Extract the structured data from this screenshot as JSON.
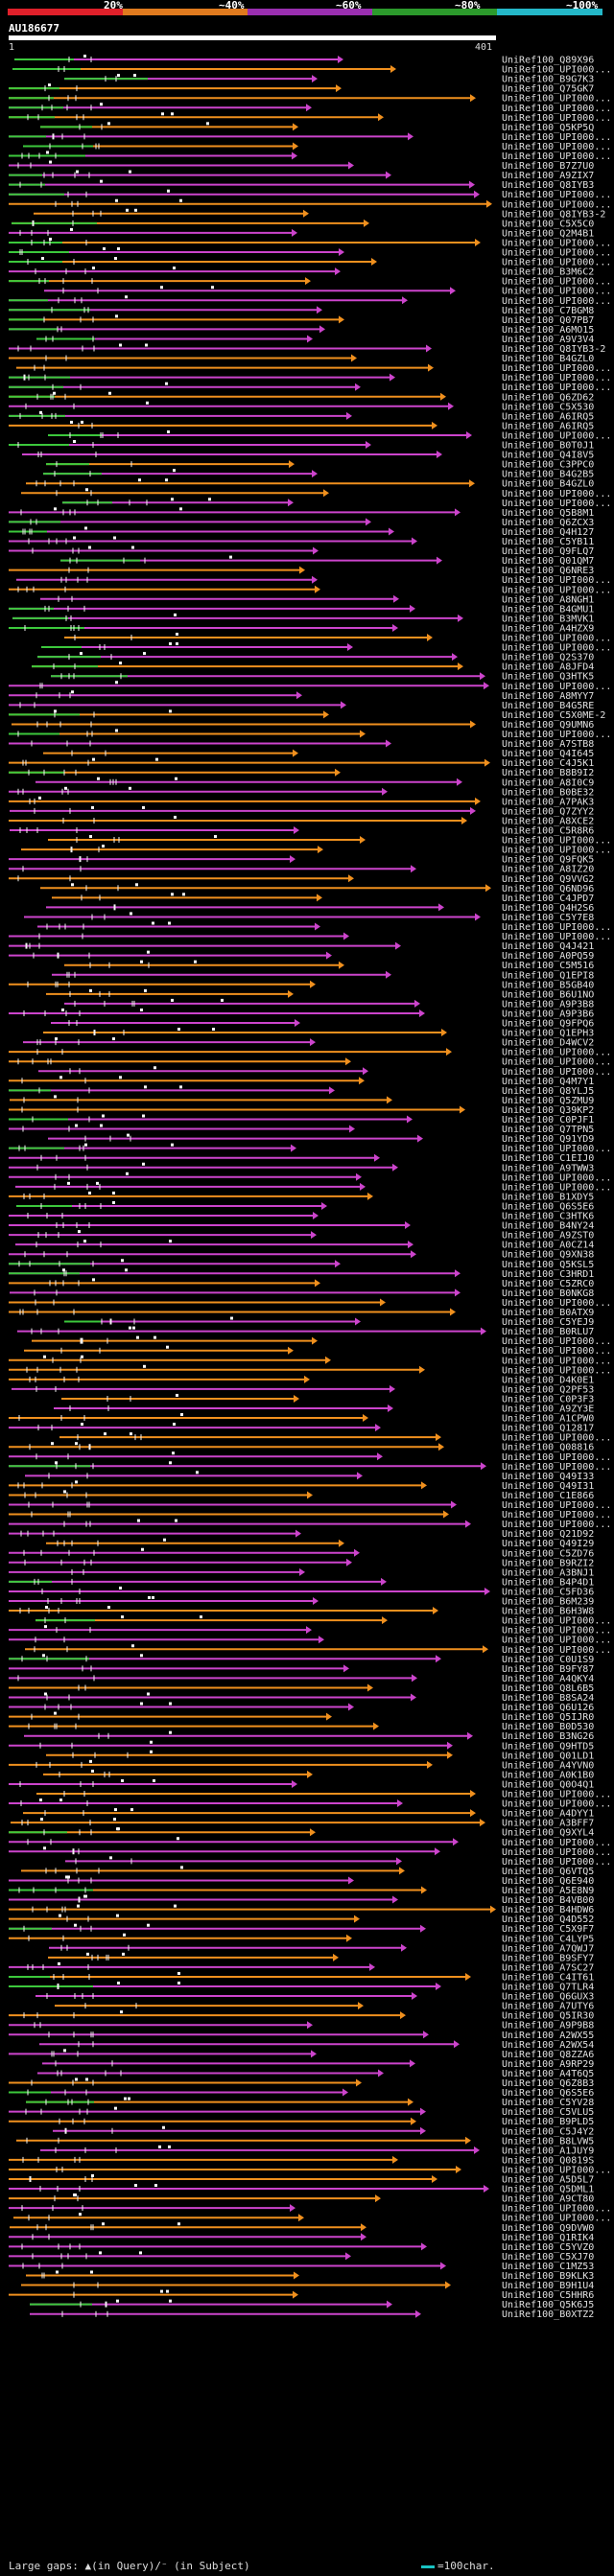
{
  "legend": {
    "segments": [
      {
        "label": "",
        "color": "#e0202a"
      },
      {
        "label": "20%",
        "color": "#e07a1e"
      },
      {
        "label": "~40%",
        "color": "#9a2fb0"
      },
      {
        "label": "~60%",
        "color": "#2c9a2c"
      },
      {
        "label": "~80%",
        "color": "#24b8c8"
      },
      {
        "label": "~100%",
        "color": "#24b8c8"
      }
    ],
    "labels": [
      "20%",
      "~40%",
      "~60%",
      "~80%",
      "~100%"
    ]
  },
  "query": {
    "title": "AU186677",
    "start": "1",
    "end": "401"
  },
  "colors": {
    "magenta": "#cc44cc",
    "orange": "#f0901e",
    "green": "#3cc83c",
    "white": "#ffffff"
  },
  "hits": [
    "UniRef100_Q89X96",
    "UniRef100_UPI000...",
    "UniRef100_B9G7K3",
    "UniRef100_Q75GK7",
    "UniRef100_UPI000...",
    "UniRef100_UPI000...",
    "UniRef100_UPI000...",
    "UniRef100_Q5KP5Q",
    "UniRef100_UPI000...",
    "UniRef100_UPI000...",
    "UniRef100_UPI000...",
    "UniRef100_B7Z7U0",
    "UniRef100_A9ZIX7",
    "UniRef100_Q8IYB3",
    "UniRef100_UPI000...",
    "UniRef100_UPI000...",
    "UniRef100_Q8IYB3-2",
    "UniRef100_C5X5C0",
    "UniRef100_Q2M4B1",
    "UniRef100_UPI000...",
    "UniRef100_UPI000...",
    "UniRef100_UPI000...",
    "UniRef100_B3M6C2",
    "UniRef100_UPI000...",
    "UniRef100_UPI000...",
    "UniRef100_UPI000...",
    "UniRef100_C7BGM8",
    "UniRef100_Q07PB7",
    "UniRef100_A6MO15",
    "UniRef100_A9V3V4",
    "UniRef100_Q8IYB3-2",
    "UniRef100_B4GZL0",
    "UniRef100_UPI000...",
    "UniRef100_UPI000...",
    "UniRef100_UPI000...",
    "UniRef100_Q6ZD62",
    "UniRef100_C5X530",
    "UniRef100_A6IRQ5",
    "UniRef100_A6IRQ5",
    "UniRef100_UPI000...",
    "UniRef100_B0T0J1",
    "UniRef100_Q4I8V5",
    "UniRef100_C3PPC0",
    "UniRef100_B4G2B5",
    "UniRef100_B4GZL0",
    "UniRef100_UPI000...",
    "UniRef100_UPI000...",
    "UniRef100_Q5B8M1",
    "UniRef100_Q6ZCX3",
    "UniRef100_Q4H127",
    "UniRef100_C5YB11",
    "UniRef100_Q9FLQ7",
    "UniRef100_Q01QM7",
    "UniRef100_Q6NRE3",
    "UniRef100_UPI000...",
    "UniRef100_UPI000...",
    "UniRef100_A8NGH1",
    "UniRef100_B4GMU1",
    "UniRef100_B3MVK1",
    "UniRef100_A4HZX9",
    "UniRef100_UPI000...",
    "UniRef100_UPI000...",
    "UniRef100_Q2S370",
    "UniRef100_A8JFD4",
    "UniRef100_Q3HTK5",
    "UniRef100_UPI000...",
    "UniRef100_A8MYY7",
    "UniRef100_B4G5RE",
    "UniRef100_C5X0ME-2",
    "UniRef100_Q9UMN6",
    "UniRef100_UPI000...",
    "UniRef100_A7STB8",
    "UniRef100_Q4I645",
    "UniRef100_C4J5K1",
    "UniRef100_B8B9I2",
    "UniRef100_A8I0C9",
    "UniRef100_B0BE32",
    "UniRef100_A7PAK3",
    "UniRef100_Q7ZYY2",
    "UniRef100_A8XCE2",
    "UniRef100_C5R8R6",
    "UniRef100_UPI000...",
    "UniRef100_UPI000...",
    "UniRef100_Q9FQK5",
    "UniRef100_A8IZ20",
    "UniRef100_Q9VVG2",
    "UniRef100_Q6ND96",
    "UniRef100_C4JPD7",
    "UniRef100_Q4H2S6",
    "UniRef100_C5Y7E8",
    "UniRef100_UPI000...",
    "UniRef100_UPI000...",
    "UniRef100_Q4J421",
    "UniRef100_A0PQ59",
    "UniRef100_C5M516",
    "UniRef100_Q1EPI8",
    "UniRef100_B5GB40",
    "UniRef100_B6U1NO",
    "UniRef100_A9P3B8",
    "UniRef100_A9P3B6",
    "UniRef100_Q9FPQ6",
    "UniRef100_Q1EPH3",
    "UniRef100_D4WCV2",
    "UniRef100_UPI000...",
    "UniRef100_UPI000...",
    "UniRef100_UPI000...",
    "UniRef100_Q4M7Y1",
    "UniRef100_Q8YLJ5",
    "UniRef100_Q5ZMU9",
    "UniRef100_Q39KP2",
    "UniRef100_C0PJF1",
    "UniRef100_Q7TPN5",
    "UniRef100_Q91YD9",
    "UniRef100_UPI000...",
    "UniRef100_C1EIJ0",
    "UniRef100_A9TWW3",
    "UniRef100_UPI000...",
    "UniRef100_UPI000...",
    "UniRef100_B1XDY5",
    "UniRef100_Q6S5E6",
    "UniRef100_C3HTK6",
    "UniRef100_B4NY24",
    "UniRef100_A9ZST0",
    "UniRef100_A0CZ14",
    "UniRef100_Q9XN38",
    "UniRef100_Q5KSL5",
    "UniRef100_C3HRD1",
    "UniRef100_C5ZRC0",
    "UniRef100_B0NKG8",
    "UniRef100_UPI000...",
    "UniRef100_B0ATX9",
    "UniRef100_C5YEJ9",
    "UniRef100_B0RLU7",
    "UniRef100_UPI000...",
    "UniRef100_UPI000...",
    "UniRef100_UPI000...",
    "UniRef100_UPI000...",
    "UniRef100_D4K0E1",
    "UniRef100_Q2PF53",
    "UniRef100_C0P3F3",
    "UniRef100_A9ZY3E",
    "UniRef100_A1CPW0",
    "UniRef100_Q12817",
    "UniRef100_UPI000...",
    "UniRef100_Q08816",
    "UniRef100_UPI000...",
    "UniRef100_UPI000...",
    "UniRef100_Q49I33",
    "UniRef100_Q49I31",
    "UniRef100_C1E866",
    "UniRef100_UPI000...",
    "UniRef100_UPI000...",
    "UniRef100_UPI000...",
    "UniRef100_Q21D92",
    "UniRef100_Q49I29",
    "UniRef100_C5ZD76",
    "UniRef100_B9RZI2",
    "UniRef100_A3BNJ1",
    "UniRef100_B4P4D1",
    "UniRef100_C5FD36",
    "UniRef100_B6M239",
    "UniRef100_B6H3W8",
    "UniRef100_UPI000...",
    "UniRef100_UPI000...",
    "UniRef100_UPI000...",
    "UniRef100_UPI000...",
    "UniRef100_C0U1S9",
    "UniRef100_B9FY87",
    "UniRef100_A4QKY4",
    "UniRef100_Q8L6B5",
    "UniRef100_B8SA24",
    "UniRef100_Q6U126",
    "UniRef100_Q5IJR0",
    "UniRef100_B0D530",
    "UniRef100_B3NG26",
    "UniRef100_Q9HTD5",
    "UniRef100_Q01LD1",
    "UniRef100_A4YVN0",
    "UniRef100_A0K1B0",
    "UniRef100_Q0O4Q1",
    "UniRef100_UPI000...",
    "UniRef100_UPI000...",
    "UniRef100_A4DYY1",
    "UniRef100_A3BFF7",
    "UniRef100_Q9XYL4",
    "UniRef100_UPI000...",
    "UniRef100_UPI000...",
    "UniRef100_UPI000...",
    "UniRef100_Q6VTQ5",
    "UniRef100_Q6E940",
    "UniRef100_A5E8N9",
    "UniRef100_B4VB00",
    "UniRef100_B4HDW6",
    "UniRef100_Q4D552",
    "UniRef100_C5X9F7",
    "UniRef100_C4LYP5",
    "UniRef100_A7QWJ7",
    "UniRef100_B9SFY7",
    "UniRef100_A7SC27",
    "UniRef100_C4IT61",
    "UniRef100_Q7TLR4",
    "UniRef100_Q6GUX3",
    "UniRef100_A7UTY6",
    "UniRef100_Q5IR30",
    "UniRef100_A9P9B8",
    "UniRef100_A2WX55",
    "UniRef100_A2WX54",
    "UniRef100_Q8ZZA6",
    "UniRef100_A9RP29",
    "UniRef100_A4T6Q5",
    "UniRef100_Q6Z8B3",
    "UniRef100_Q6S5E6",
    "UniRef100_C5YV28",
    "UniRef100_C5VLU5",
    "UniRef100_B9PLD5",
    "UniRef100_C5J4Y2",
    "UniRef100_B8LVW5",
    "UniRef100_A1JUY9",
    "UniRef100_Q0819S",
    "UniRef100_UPI000...",
    "UniRef100_A5D5L7",
    "UniRef100_Q5DML1",
    "UniRef100_A9CT80",
    "UniRef100_UPI000...",
    "UniRef100_UPI000...",
    "UniRef100_Q9DVW0",
    "UniRef100_Q1RIK4",
    "UniRef100_C5YVZ0",
    "UniRef100_C5XJ70",
    "UniRef100_C1MZ53",
    "UniRef100_B9KLK3",
    "UniRef100_B9H1U4",
    "UniRef100_C5HHR6",
    "UniRef100_Q5K6J5",
    "UniRef100_B0XTZ2"
  ],
  "footer": {
    "left": "Large gaps: ▲(in Query)/⁻ (in Subject)",
    "right": "=100char."
  }
}
